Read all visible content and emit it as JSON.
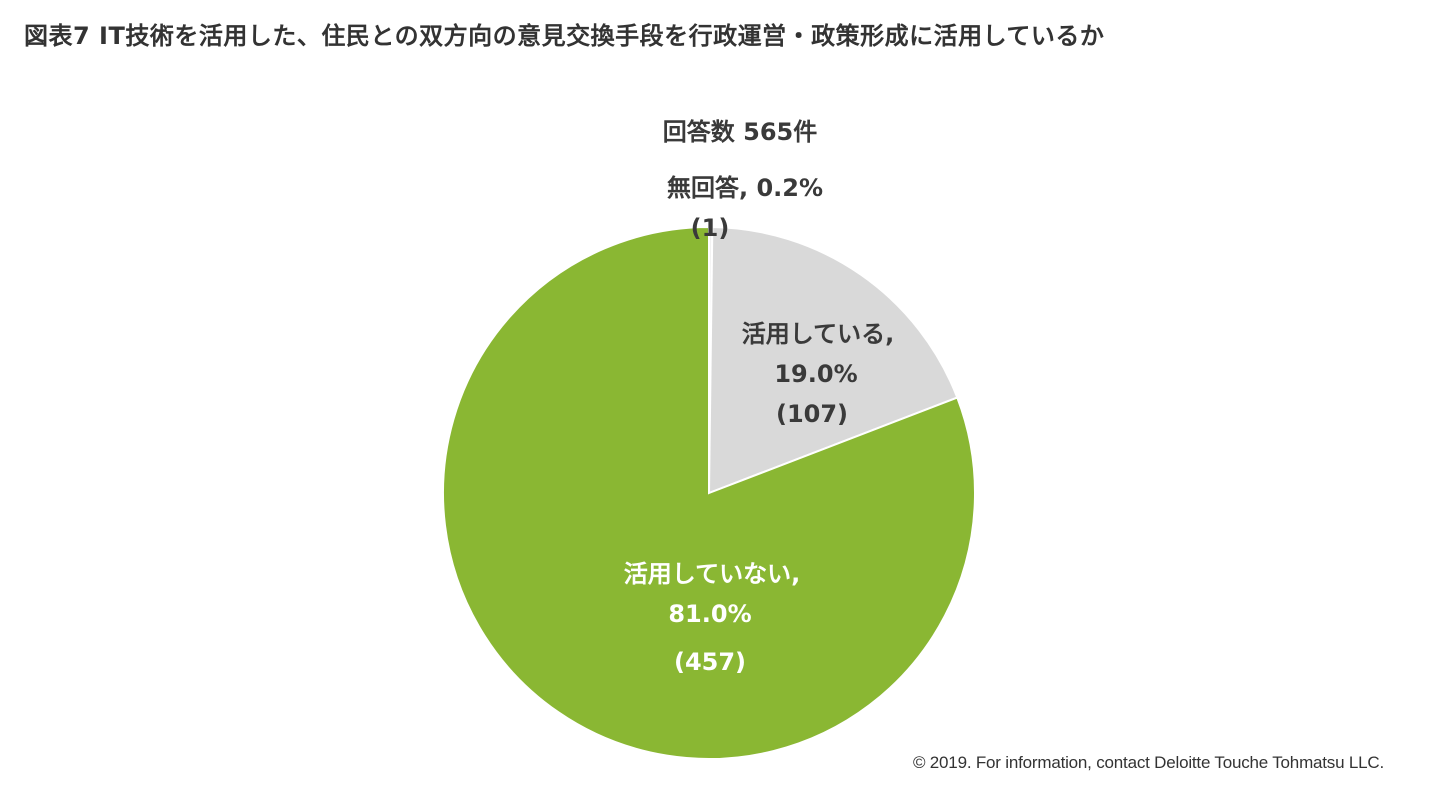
{
  "figure": {
    "title": "図表7 IT技術を活用した、住民との双方向の意見交換手段を行政運営・政策形成に活用しているか",
    "credit": "© 2019. For information, contact Deloitte Touche Tohmatsu LLC."
  },
  "chart_data": {
    "type": "pie",
    "subtitle": "回答数 565件",
    "total": 565,
    "slices": [
      {
        "category": "無回答",
        "percent": 0.2,
        "count": 1,
        "color": "#f2f2f2",
        "label_lines": [
          "無回答, 0.2%",
          "(1)"
        ]
      },
      {
        "category": "活用している",
        "percent": 19.0,
        "count": 107,
        "color": "#d9d9d9",
        "label_lines": [
          "活用している,",
          "19.0%",
          "(107)"
        ]
      },
      {
        "category": "活用していない",
        "percent": 81.0,
        "count": 457,
        "color": "#8ab733",
        "label_lines": [
          "活用していない,",
          "81.0%",
          "(457)"
        ]
      }
    ]
  }
}
